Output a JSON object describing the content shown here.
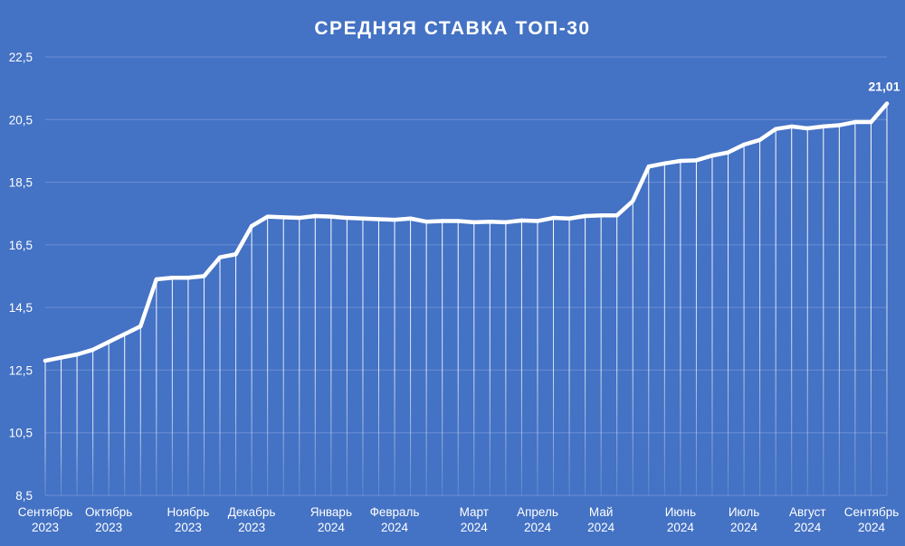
{
  "chart_data": {
    "type": "line",
    "title": "СРЕДНЯЯ СТАВКА ТОП-30",
    "xlabel": "",
    "ylabel": "",
    "ylim": [
      8.5,
      22.5
    ],
    "yticks": [
      "8,5",
      "10,5",
      "12,5",
      "14,5",
      "16,5",
      "18,5",
      "20,5",
      "22,5"
    ],
    "ytick_values": [
      8.5,
      10.5,
      12.5,
      14.5,
      16.5,
      18.5,
      20.5,
      22.5
    ],
    "grid": true,
    "drop_lines": true,
    "month_labels": [
      {
        "month": "Сентябрь",
        "year": "2023",
        "index": 0
      },
      {
        "month": "Октябрь",
        "year": "2023",
        "index": 4
      },
      {
        "month": "Ноябрь",
        "year": "2023",
        "index": 9
      },
      {
        "month": "Декабрь",
        "year": "2023",
        "index": 13
      },
      {
        "month": "Январь",
        "year": "2024",
        "index": 18
      },
      {
        "month": "Февраль",
        "year": "2024",
        "index": 22
      },
      {
        "month": "Март",
        "year": "2024",
        "index": 27
      },
      {
        "month": "Апрель",
        "year": "2024",
        "index": 31
      },
      {
        "month": "Май",
        "year": "2024",
        "index": 35
      },
      {
        "month": "Июнь",
        "year": "2024",
        "index": 40
      },
      {
        "month": "Июль",
        "year": "2024",
        "index": 44
      },
      {
        "month": "Август",
        "year": "2024",
        "index": 48
      },
      {
        "month": "Сентябрь",
        "year": "2024",
        "index": 53
      }
    ],
    "end_label": "21,01",
    "series": [
      {
        "values": [
          12.8,
          12.9,
          13.0,
          13.15,
          13.4,
          13.65,
          13.9,
          15.4,
          15.45,
          15.45,
          15.5,
          16.1,
          16.2,
          17.1,
          17.4,
          17.38,
          17.36,
          17.42,
          17.4,
          17.36,
          17.34,
          17.32,
          17.3,
          17.34,
          17.24,
          17.26,
          17.26,
          17.22,
          17.24,
          17.22,
          17.28,
          17.26,
          17.36,
          17.34,
          17.42,
          17.44,
          17.44,
          17.9,
          19.0,
          19.1,
          19.18,
          19.2,
          19.35,
          19.45,
          19.7,
          19.85,
          20.2,
          20.28,
          20.22,
          20.28,
          20.32,
          20.42,
          20.42,
          21.01
        ]
      }
    ]
  }
}
